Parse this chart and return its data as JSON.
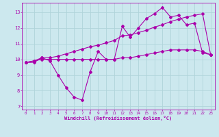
{
  "xlabel": "Windchill (Refroidissement éolien,°C)",
  "xlim": [
    -0.5,
    23.5
  ],
  "ylim": [
    6.8,
    13.6
  ],
  "yticks": [
    7,
    8,
    9,
    10,
    11,
    12,
    13
  ],
  "xticks": [
    0,
    1,
    2,
    3,
    4,
    5,
    6,
    7,
    8,
    9,
    10,
    11,
    12,
    13,
    14,
    15,
    16,
    17,
    18,
    19,
    20,
    21,
    22,
    23
  ],
  "bg_color": "#cce8ee",
  "line_color": "#aa00aa",
  "grid_color": "#aacccc",
  "line1_y": [
    9.8,
    9.8,
    10.1,
    9.9,
    9.0,
    8.2,
    7.6,
    7.4,
    9.2,
    10.5,
    10.0,
    10.0,
    12.1,
    11.4,
    12.0,
    12.6,
    12.9,
    13.3,
    12.7,
    12.8,
    12.2,
    12.3,
    10.4,
    10.3
  ],
  "line2_y": [
    9.8,
    9.9,
    10.0,
    10.0,
    10.0,
    10.0,
    10.0,
    10.0,
    10.0,
    10.0,
    10.0,
    10.0,
    10.1,
    10.1,
    10.2,
    10.3,
    10.4,
    10.5,
    10.6,
    10.6,
    10.6,
    10.6,
    10.5,
    10.3
  ],
  "line3_y": [
    9.8,
    9.9,
    10.1,
    10.1,
    10.2,
    10.35,
    10.5,
    10.65,
    10.8,
    10.9,
    11.05,
    11.2,
    11.5,
    11.55,
    11.7,
    11.85,
    12.05,
    12.2,
    12.4,
    12.55,
    12.7,
    12.8,
    12.9,
    10.3
  ]
}
